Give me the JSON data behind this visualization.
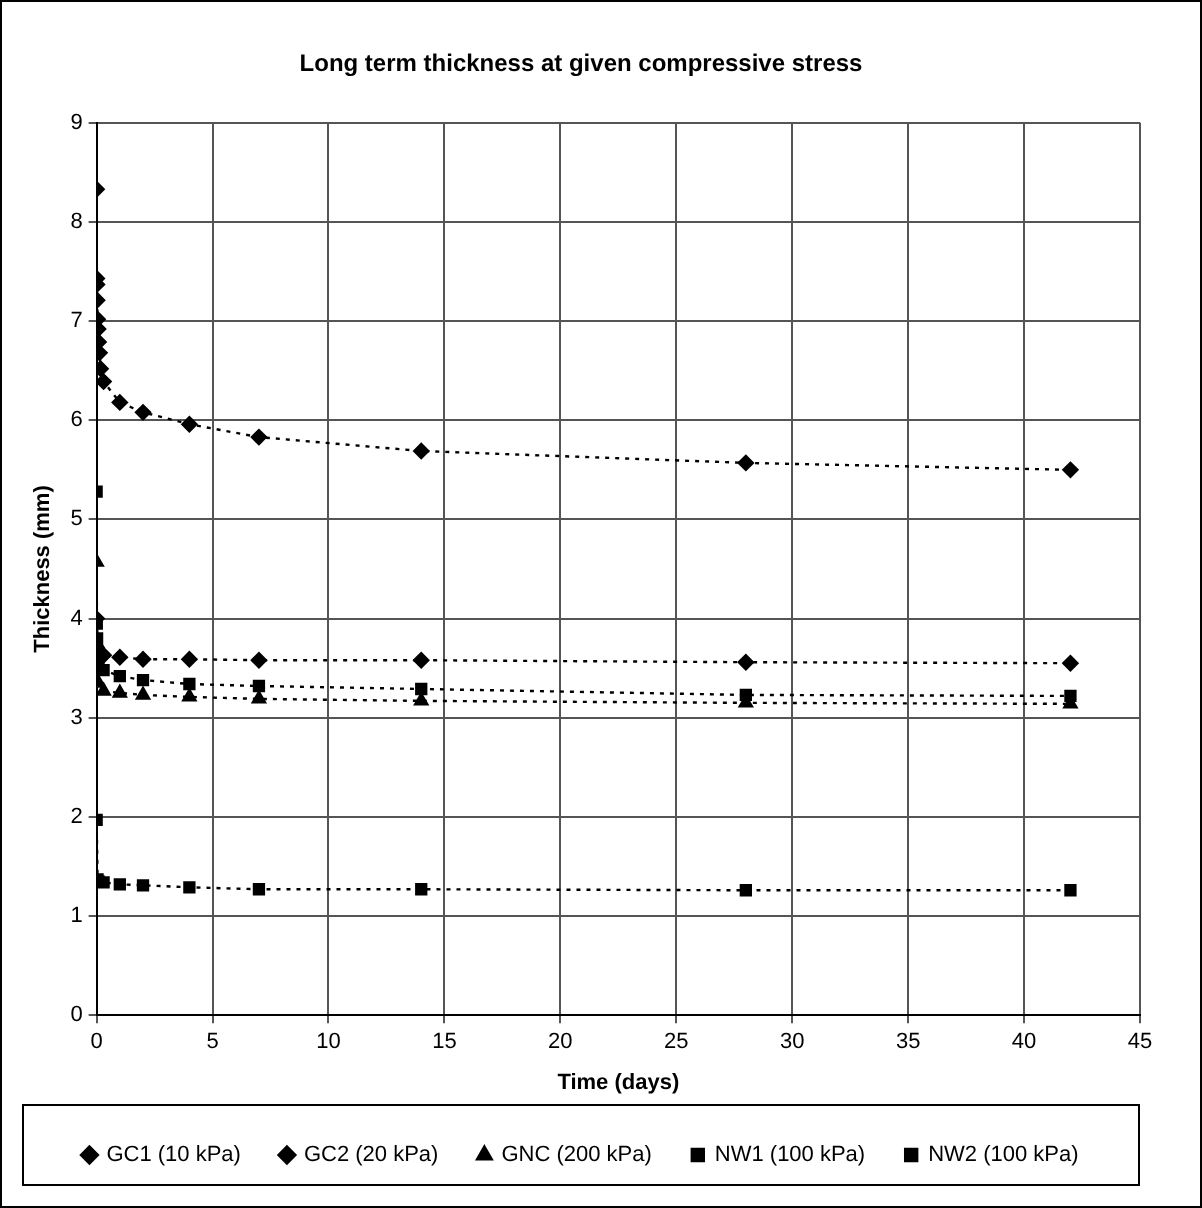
{
  "chart_data": {
    "type": "line",
    "title": "Long term thickness at given compressive stress",
    "xlabel": "Time (days)",
    "ylabel": "Thickness (mm)",
    "xlim": [
      0,
      45
    ],
    "xticks": [
      0,
      5,
      10,
      15,
      20,
      25,
      30,
      35,
      40,
      45
    ],
    "ylim": [
      0,
      9
    ],
    "yticks": [
      0,
      1,
      2,
      3,
      4,
      5,
      6,
      7,
      8,
      9
    ],
    "grid": true,
    "legend": "bottom",
    "line_style": "dotted",
    "series": [
      {
        "name": "GC1 (10 kPa)",
        "color": "#000000",
        "marker": "diamond",
        "x": [
          0,
          0.007,
          0.014,
          0.021,
          0.042,
          0.063,
          0.083,
          0.125,
          0.17,
          0.3,
          1,
          2,
          4,
          7,
          14,
          28,
          42
        ],
        "values": [
          8.33,
          7.43,
          7.37,
          7.21,
          7.02,
          6.92,
          6.79,
          6.68,
          6.52,
          6.39,
          6.18,
          6.08,
          5.96,
          5.83,
          5.69,
          5.57,
          5.5
        ]
      },
      {
        "name": "GC2 (20 kPa)",
        "color": "#000000",
        "marker": "diamond",
        "x": [
          0,
          0.08,
          0.3,
          1,
          2,
          4,
          7,
          14,
          28,
          42
        ],
        "values": [
          4.0,
          3.65,
          3.63,
          3.61,
          3.59,
          3.59,
          3.58,
          3.58,
          3.56,
          3.55
        ]
      },
      {
        "name": "GNC (200 kPa)",
        "color": "#000000",
        "marker": "triangle",
        "x": [
          0,
          0.02,
          0.04,
          0.08,
          0.3,
          1,
          2,
          4,
          7,
          14,
          28,
          42
        ],
        "values": [
          4.57,
          3.75,
          3.5,
          3.35,
          3.27,
          3.25,
          3.23,
          3.21,
          3.19,
          3.17,
          3.15,
          3.14
        ]
      },
      {
        "name": "NW1 (100 kPa)",
        "color": "#000000",
        "marker": "square",
        "x": [
          0,
          0.007,
          0.02,
          0.04,
          0.08,
          0.3,
          1,
          2,
          4,
          7,
          14,
          28,
          42
        ],
        "values": [
          5.28,
          3.95,
          3.8,
          3.6,
          3.5,
          3.48,
          3.42,
          3.38,
          3.34,
          3.32,
          3.29,
          3.23,
          3.22
        ]
      },
      {
        "name": "NW2 (100 kPa)",
        "color": "#000000",
        "marker": "square",
        "x": [
          0,
          0.04,
          0.08,
          0.3,
          1,
          2,
          4,
          7,
          14,
          28,
          42
        ],
        "values": [
          1.97,
          1.37,
          1.35,
          1.34,
          1.32,
          1.31,
          1.29,
          1.27,
          1.27,
          1.26,
          1.26
        ]
      }
    ]
  }
}
